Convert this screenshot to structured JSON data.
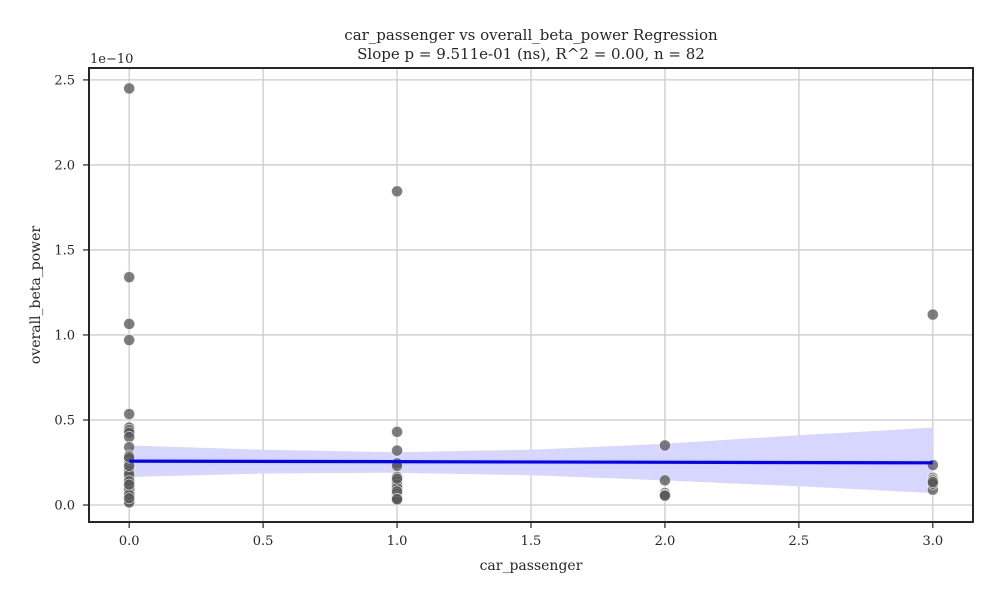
{
  "chart_data": {
    "type": "scatter",
    "title_line1": "car_passenger vs overall_beta_power Regression",
    "title_line2": "Slope p = 9.511e-01 (ns), R^2 = 0.00, n = 82",
    "xlabel": "car_passenger",
    "ylabel": "overall_beta_power",
    "y_offset_label": "1e−10",
    "xlim": [
      -0.15,
      3.15
    ],
    "ylim": [
      -0.1,
      2.57
    ],
    "x_ticks": [
      0.0,
      0.5,
      1.0,
      1.5,
      2.0,
      2.5,
      3.0
    ],
    "x_tick_labels": [
      "0.0",
      "0.5",
      "1.0",
      "1.5",
      "2.0",
      "2.5",
      "3.0"
    ],
    "y_ticks": [
      0.0,
      0.5,
      1.0,
      1.5,
      2.0,
      2.5
    ],
    "y_tick_labels": [
      "0.0",
      "0.5",
      "1.0",
      "1.5",
      "2.0",
      "2.5"
    ],
    "grid": true,
    "points_color": "#595959",
    "regression_color": "#0000ff",
    "ci_color": "#d6d6ff",
    "points": [
      {
        "x": 0,
        "y": 2.45
      },
      {
        "x": 0,
        "y": 1.34
      },
      {
        "x": 0,
        "y": 1.065
      },
      {
        "x": 0,
        "y": 0.97
      },
      {
        "x": 0,
        "y": 0.535
      },
      {
        "x": 0,
        "y": 0.455
      },
      {
        "x": 0,
        "y": 0.44
      },
      {
        "x": 0,
        "y": 0.425
      },
      {
        "x": 0,
        "y": 0.4
      },
      {
        "x": 0,
        "y": 0.34
      },
      {
        "x": 0,
        "y": 0.29
      },
      {
        "x": 0,
        "y": 0.27
      },
      {
        "x": 0,
        "y": 0.245
      },
      {
        "x": 0,
        "y": 0.225
      },
      {
        "x": 0,
        "y": 0.21
      },
      {
        "x": 0,
        "y": 0.19
      },
      {
        "x": 0,
        "y": 0.17
      },
      {
        "x": 0,
        "y": 0.15
      },
      {
        "x": 0,
        "y": 0.135
      },
      {
        "x": 0,
        "y": 0.12
      },
      {
        "x": 0,
        "y": 0.105
      },
      {
        "x": 0,
        "y": 0.09
      },
      {
        "x": 0,
        "y": 0.08
      },
      {
        "x": 0,
        "y": 0.07
      },
      {
        "x": 0,
        "y": 0.06
      },
      {
        "x": 0,
        "y": 0.05
      },
      {
        "x": 0,
        "y": 0.04
      },
      {
        "x": 0,
        "y": 0.03
      },
      {
        "x": 0,
        "y": 0.02
      },
      {
        "x": 0,
        "y": 0.1
      },
      {
        "x": 0,
        "y": 0.065
      },
      {
        "x": 0,
        "y": 0.045
      },
      {
        "x": 0,
        "y": 0.035
      },
      {
        "x": 0,
        "y": 0.16
      },
      {
        "x": 0,
        "y": 0.2
      },
      {
        "x": 0,
        "y": 0.025
      },
      {
        "x": 0,
        "y": 0.055
      },
      {
        "x": 0,
        "y": 0.085
      },
      {
        "x": 0,
        "y": 0.11
      },
      {
        "x": 0,
        "y": 0.13
      },
      {
        "x": 0,
        "y": 0.075
      },
      {
        "x": 0,
        "y": 0.095
      },
      {
        "x": 0,
        "y": 0.18
      },
      {
        "x": 0,
        "y": 0.23
      },
      {
        "x": 0,
        "y": 0.015
      },
      {
        "x": 0,
        "y": 0.28
      },
      {
        "x": 0,
        "y": 0.14
      },
      {
        "x": 0,
        "y": 0.06
      },
      {
        "x": 0,
        "y": 0.04
      },
      {
        "x": 0,
        "y": 0.12
      },
      {
        "x": 1,
        "y": 1.845
      },
      {
        "x": 1,
        "y": 0.43
      },
      {
        "x": 1,
        "y": 0.32
      },
      {
        "x": 1,
        "y": 0.245
      },
      {
        "x": 1,
        "y": 0.23
      },
      {
        "x": 1,
        "y": 0.165
      },
      {
        "x": 1,
        "y": 0.14
      },
      {
        "x": 1,
        "y": 0.12
      },
      {
        "x": 1,
        "y": 0.1
      },
      {
        "x": 1,
        "y": 0.065
      },
      {
        "x": 1,
        "y": 0.05
      },
      {
        "x": 1,
        "y": 0.04
      },
      {
        "x": 1,
        "y": 0.03
      },
      {
        "x": 1,
        "y": 0.155
      },
      {
        "x": 1,
        "y": 0.08
      },
      {
        "x": 1,
        "y": 0.035
      },
      {
        "x": 2,
        "y": 0.35
      },
      {
        "x": 2,
        "y": 0.145
      },
      {
        "x": 2,
        "y": 0.07
      },
      {
        "x": 2,
        "y": 0.06
      },
      {
        "x": 2,
        "y": 0.055
      },
      {
        "x": 3,
        "y": 1.12
      },
      {
        "x": 3,
        "y": 0.235
      },
      {
        "x": 3,
        "y": 0.16
      },
      {
        "x": 3,
        "y": 0.15
      },
      {
        "x": 3,
        "y": 0.14
      },
      {
        "x": 3,
        "y": 0.13
      },
      {
        "x": 3,
        "y": 0.12
      },
      {
        "x": 3,
        "y": 0.09
      },
      {
        "x": 3,
        "y": 0.145
      },
      {
        "x": 3,
        "y": 0.125
      },
      {
        "x": 3,
        "y": 0.135
      }
    ],
    "regression": {
      "x": [
        0,
        3
      ],
      "y": [
        0.258,
        0.248
      ]
    },
    "ci_band": {
      "x": [
        0,
        0.5,
        1.0,
        1.5,
        2.0,
        2.5,
        3.0
      ],
      "upper": [
        0.35,
        0.325,
        0.31,
        0.325,
        0.36,
        0.41,
        0.455
      ],
      "lower": [
        0.165,
        0.185,
        0.19,
        0.175,
        0.145,
        0.11,
        0.07
      ]
    }
  }
}
